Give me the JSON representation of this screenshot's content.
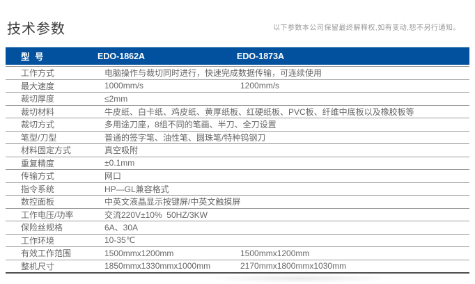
{
  "page": {
    "title": "技术参数",
    "disclaimer": "以下参数本公司保留最终解释权,如有变动,恕不另行通知。"
  },
  "table": {
    "header": {
      "label_col": "型 号",
      "model1": "EDO-1862A",
      "model2": "EDO-1873A"
    },
    "rows": [
      {
        "label": "工作方式",
        "span": "电脑操作与裁切同时进行，快速完成数据传输，可连续使用"
      },
      {
        "label": "最大速度",
        "col1": "1000mm/s",
        "col2": "1200mm/s"
      },
      {
        "label": "裁切厚度",
        "span": "≤2mm"
      },
      {
        "label": "裁切材料",
        "span": "牛皮纸、白卡纸、鸡皮纸、黄厚纸板、红硬纸板、PVC板、纤维中底板以及橡胶板等"
      },
      {
        "label": "裁切方式",
        "span": "多用途刀座，8组不同的笔画、半刀、全刀设置"
      },
      {
        "label": "笔型/刀型",
        "span": "普通的签字笔、油性笔、圆珠笔/特种钨钢刀"
      },
      {
        "label": "材料固定方式",
        "span": "真空吸附"
      },
      {
        "label": "重复精度",
        "span": "±0.1mm"
      },
      {
        "label": "传输方式",
        "span": "网口"
      },
      {
        "label": "指令系统",
        "span": "HP—GL兼容格式"
      },
      {
        "label": "数控面板",
        "span": "中英文液晶显示按键屏/中英文触摸屏"
      },
      {
        "label": "工作电压/功率",
        "span": "交流220V±10%  50HZ/3KW"
      },
      {
        "label": "保险丝规格",
        "span": "6A、30A"
      },
      {
        "label": "工作环境",
        "span": "10-35℃"
      },
      {
        "label": "有效工作范围",
        "col1": "1500mmx1200mm",
        "col2": "1500mmx1200mm"
      },
      {
        "label": "整机尺寸",
        "col1": "1850mmx1330mmx1000mm",
        "col2": "2170mmx1800mmx1030mm"
      }
    ],
    "colors": {
      "header_bg": "#02519E",
      "header_text": "#FFFFFF",
      "row_text": "#666666",
      "separator": "#9B9B9B",
      "bottom_border": "#4F4F4F"
    }
  }
}
